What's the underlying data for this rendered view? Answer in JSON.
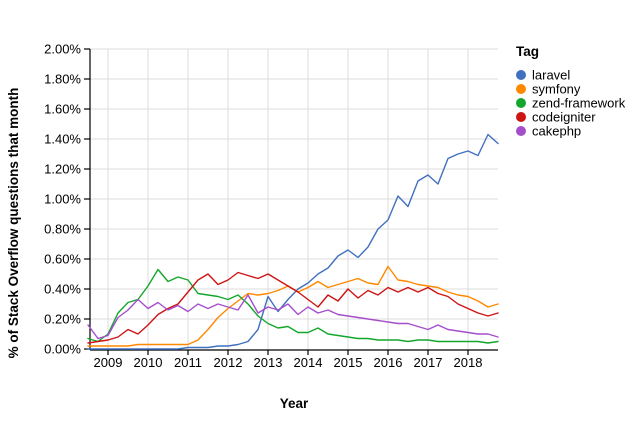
{
  "page": {
    "background": "#ffffff"
  },
  "chart_data": {
    "type": "line",
    "title": "",
    "xlabel": "Year",
    "ylabel": "% of Stack Overflow questions that month",
    "legend_title": "Tag",
    "legend_position": "right",
    "grid": true,
    "grid_color": "#dcdcdc",
    "axis_color": "#000000",
    "x_range": [
      2008.5,
      2018.85
    ],
    "ylim": [
      0,
      2.0
    ],
    "y_ticks": [
      0,
      0.2,
      0.4,
      0.6,
      0.8,
      1.0,
      1.2,
      1.4,
      1.6,
      1.8,
      2.0
    ],
    "y_tick_labels": [
      "0.00%",
      "0.20%",
      "0.40%",
      "0.60%",
      "0.80%",
      "1.00%",
      "1.20%",
      "1.40%",
      "1.60%",
      "1.80%",
      "2.00%"
    ],
    "x_ticks": [
      2009,
      2010,
      2011,
      2012,
      2013,
      2014,
      2015,
      2016,
      2017,
      2018
    ],
    "x_tick_labels": [
      "2009",
      "2010",
      "2011",
      "2012",
      "2013",
      "2014",
      "2015",
      "2016",
      "2017",
      "2018"
    ],
    "y_unit": "percent",
    "x": [
      2008.5,
      2008.75,
      2009.0,
      2009.25,
      2009.5,
      2009.75,
      2010.0,
      2010.25,
      2010.5,
      2010.75,
      2011.0,
      2011.25,
      2011.5,
      2011.75,
      2012.0,
      2012.25,
      2012.5,
      2012.75,
      2013.0,
      2013.25,
      2013.5,
      2013.75,
      2014.0,
      2014.25,
      2014.5,
      2014.75,
      2015.0,
      2015.25,
      2015.5,
      2015.75,
      2016.0,
      2016.25,
      2016.5,
      2016.75,
      2017.0,
      2017.25,
      2017.5,
      2017.75,
      2018.0,
      2018.25,
      2018.5,
      2018.75
    ],
    "series": [
      {
        "name": "laravel",
        "color": "#4070C0",
        "values": [
          0,
          0,
          0,
          0,
          0,
          0,
          0,
          0,
          0,
          0,
          0.01,
          0.01,
          0.01,
          0.02,
          0.02,
          0.03,
          0.05,
          0.13,
          0.35,
          0.25,
          0.33,
          0.4,
          0.44,
          0.5,
          0.54,
          0.62,
          0.66,
          0.61,
          0.68,
          0.8,
          0.86,
          1.02,
          0.95,
          1.12,
          1.16,
          1.1,
          1.27,
          1.3,
          1.32,
          1.29,
          1.43,
          1.37
        ]
      },
      {
        "name": "symfony",
        "color": "#FF8800",
        "values": [
          0.02,
          0.02,
          0.02,
          0.02,
          0.02,
          0.03,
          0.03,
          0.03,
          0.03,
          0.03,
          0.03,
          0.06,
          0.13,
          0.21,
          0.27,
          0.32,
          0.37,
          0.36,
          0.37,
          0.39,
          0.42,
          0.38,
          0.41,
          0.45,
          0.41,
          0.43,
          0.45,
          0.47,
          0.44,
          0.43,
          0.55,
          0.46,
          0.45,
          0.43,
          0.42,
          0.41,
          0.38,
          0.36,
          0.35,
          0.32,
          0.28,
          0.3
        ]
      },
      {
        "name": "zend-framework",
        "color": "#14A62C",
        "values": [
          0.07,
          0.05,
          0.1,
          0.24,
          0.31,
          0.33,
          0.42,
          0.53,
          0.45,
          0.48,
          0.46,
          0.37,
          0.36,
          0.35,
          0.33,
          0.36,
          0.3,
          0.22,
          0.17,
          0.14,
          0.15,
          0.11,
          0.11,
          0.14,
          0.1,
          0.09,
          0.08,
          0.07,
          0.07,
          0.06,
          0.06,
          0.06,
          0.05,
          0.06,
          0.06,
          0.05,
          0.05,
          0.05,
          0.05,
          0.05,
          0.04,
          0.05
        ]
      },
      {
        "name": "codeigniter",
        "color": "#CE1313",
        "values": [
          0.04,
          0.05,
          0.06,
          0.08,
          0.13,
          0.1,
          0.16,
          0.23,
          0.27,
          0.3,
          0.38,
          0.46,
          0.5,
          0.43,
          0.46,
          0.51,
          0.49,
          0.47,
          0.5,
          0.46,
          0.42,
          0.38,
          0.33,
          0.28,
          0.36,
          0.32,
          0.4,
          0.34,
          0.39,
          0.36,
          0.41,
          0.38,
          0.41,
          0.38,
          0.41,
          0.37,
          0.35,
          0.3,
          0.27,
          0.24,
          0.22,
          0.24
        ]
      },
      {
        "name": "cakephp",
        "color": "#A54ECC",
        "values": [
          0.16,
          0.07,
          0.09,
          0.21,
          0.26,
          0.33,
          0.27,
          0.31,
          0.26,
          0.29,
          0.25,
          0.3,
          0.27,
          0.3,
          0.28,
          0.26,
          0.36,
          0.24,
          0.28,
          0.26,
          0.3,
          0.23,
          0.28,
          0.24,
          0.26,
          0.23,
          0.22,
          0.21,
          0.2,
          0.19,
          0.18,
          0.17,
          0.17,
          0.15,
          0.13,
          0.16,
          0.13,
          0.12,
          0.11,
          0.1,
          0.1,
          0.08
        ]
      }
    ]
  }
}
